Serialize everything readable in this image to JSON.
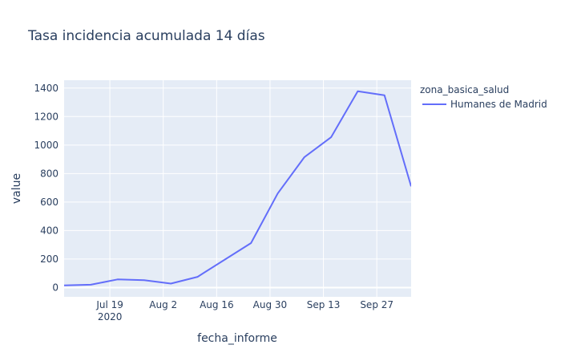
{
  "chart_data": {
    "type": "line",
    "title": "Tasa incidencia acumulada 14 días",
    "xlabel": "fecha_informe",
    "ylabel": "value",
    "legend_title": "zona_basica_salud",
    "legend_placement": "right",
    "grid": true,
    "x_ticks": [
      {
        "date": "2020-07-19",
        "label": "Jul 19",
        "sublabel": "2020"
      },
      {
        "date": "2020-08-02",
        "label": "Aug 2",
        "sublabel": ""
      },
      {
        "date": "2020-08-16",
        "label": "Aug 16",
        "sublabel": ""
      },
      {
        "date": "2020-08-30",
        "label": "Aug 30",
        "sublabel": ""
      },
      {
        "date": "2020-09-13",
        "label": "Sep 13",
        "sublabel": ""
      },
      {
        "date": "2020-09-27",
        "label": "Sep 27",
        "sublabel": ""
      }
    ],
    "y_ticks": [
      0,
      200,
      400,
      600,
      800,
      1000,
      1200,
      1400
    ],
    "xlim": [
      "2020-07-07",
      "2020-10-06"
    ],
    "ylim": [
      -65,
      1455
    ],
    "series": [
      {
        "name": "Humanes de Madrid",
        "color": "#636efa",
        "x": [
          "2020-07-07",
          "2020-07-14",
          "2020-07-21",
          "2020-07-28",
          "2020-08-04",
          "2020-08-11",
          "2020-08-25",
          "2020-09-01",
          "2020-09-08",
          "2020-09-15",
          "2020-09-22",
          "2020-09-29",
          "2020-10-06"
        ],
        "values": [
          15,
          20,
          57,
          52,
          28,
          75,
          312,
          660,
          915,
          1055,
          1378,
          1350,
          710
        ]
      }
    ]
  }
}
